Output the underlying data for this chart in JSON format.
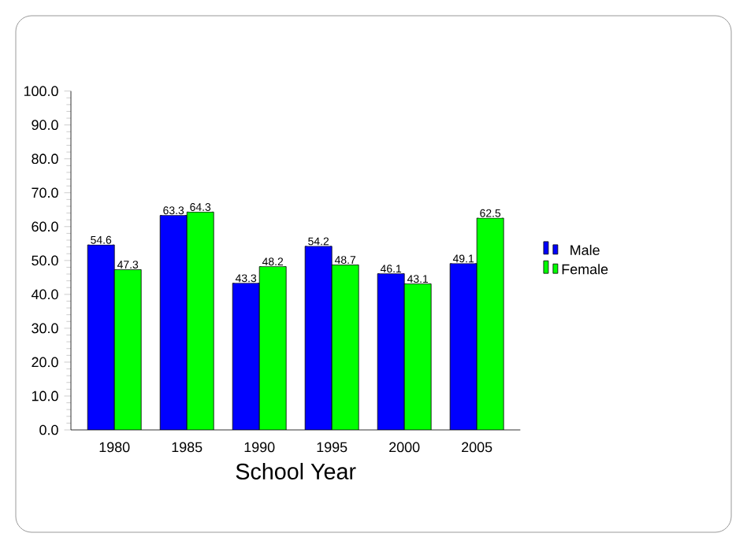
{
  "chart_data": {
    "type": "bar",
    "xlabel": "School Year",
    "categories": [
      "1980",
      "1985",
      "1990",
      "1995",
      "2000",
      "2005"
    ],
    "series": [
      {
        "name": "Male",
        "color": "#0000ff",
        "values": [
          54.6,
          63.3,
          43.3,
          54.2,
          46.1,
          49.1
        ]
      },
      {
        "name": "Female",
        "color": "#00ff00",
        "values": [
          47.3,
          64.3,
          48.2,
          48.7,
          43.1,
          62.5
        ]
      }
    ],
    "ylim": [
      0,
      100
    ],
    "yticks": [
      {
        "value": 0,
        "label": "0.0"
      },
      {
        "value": 10,
        "label": "10.0"
      },
      {
        "value": 20,
        "label": "20.0"
      },
      {
        "value": 30,
        "label": "30.0"
      },
      {
        "value": 40,
        "label": "40.0"
      },
      {
        "value": 50,
        "label": "50.0"
      },
      {
        "value": 60,
        "label": "60.0"
      },
      {
        "value": 70,
        "label": "70.0"
      },
      {
        "value": 80,
        "label": "80.0"
      },
      {
        "value": 90,
        "label": "90.0"
      },
      {
        "value": 100,
        "label": "100.0"
      }
    ],
    "data_labels": true,
    "legend": "right",
    "grid": false
  }
}
